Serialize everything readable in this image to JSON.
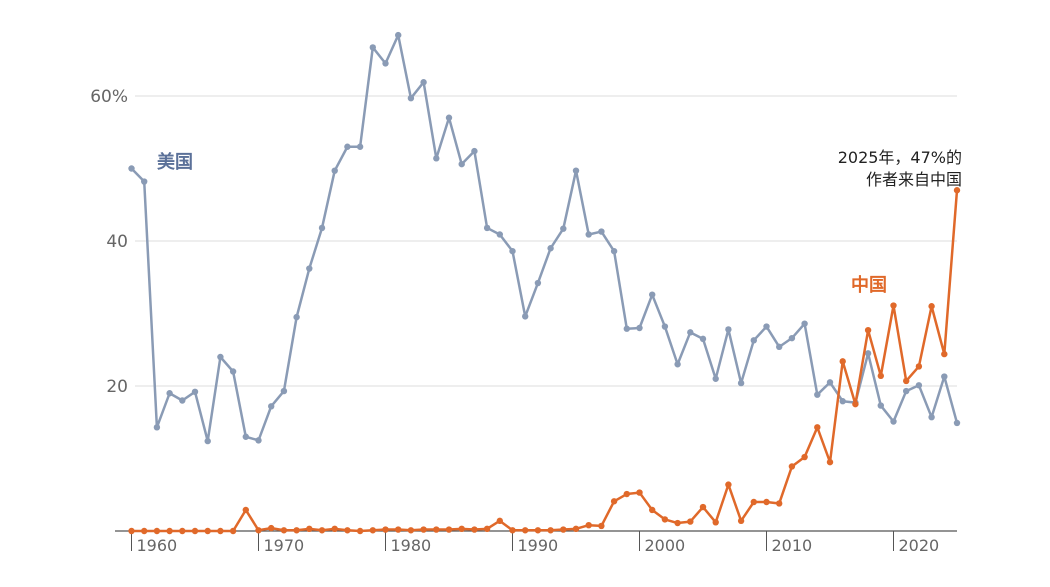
{
  "chart_data": {
    "type": "line",
    "x": [
      1960,
      1961,
      1962,
      1963,
      1964,
      1965,
      1966,
      1967,
      1968,
      1969,
      1970,
      1971,
      1972,
      1973,
      1974,
      1975,
      1976,
      1977,
      1978,
      1979,
      1980,
      1981,
      1982,
      1983,
      1984,
      1985,
      1986,
      1987,
      1988,
      1989,
      1990,
      1991,
      1992,
      1993,
      1994,
      1995,
      1996,
      1997,
      1998,
      1999,
      2000,
      2001,
      2002,
      2003,
      2004,
      2005,
      2006,
      2007,
      2008,
      2009,
      2010,
      2011,
      2012,
      2013,
      2014,
      2015,
      2016,
      2017,
      2018,
      2019,
      2020,
      2021,
      2022,
      2023,
      2024,
      2025
    ],
    "series": [
      {
        "name": "美国",
        "color": "#8a9bb5",
        "label_color": "#5b7199",
        "values": [
          50,
          48.2,
          14.3,
          19,
          18,
          19.2,
          12.4,
          24,
          22,
          13,
          12.5,
          17.2,
          19.3,
          29.5,
          36.2,
          41.8,
          49.7,
          53,
          53,
          66.7,
          64.5,
          68.4,
          59.7,
          61.9,
          51.4,
          57,
          50.6,
          52.4,
          41.8,
          40.9,
          38.6,
          29.6,
          34.2,
          39,
          41.7,
          49.7,
          40.9,
          41.3,
          38.6,
          27.9,
          28,
          32.6,
          28.2,
          23,
          27.4,
          26.5,
          21,
          27.8,
          20.4,
          26.3,
          28.2,
          25.4,
          26.6,
          28.6,
          18.8,
          20.5,
          17.9,
          17.7,
          24.5,
          17.3,
          15.1,
          19.3,
          20.1,
          15.7,
          21.3,
          14.9
        ]
      },
      {
        "name": "中国",
        "color": "#e0692a",
        "label_color": "#e0692a",
        "values": [
          0,
          0,
          0,
          0,
          0,
          0,
          0,
          0,
          0,
          2.9,
          0.1,
          0.4,
          0.1,
          0.1,
          0.3,
          0.1,
          0.3,
          0.1,
          0,
          0.1,
          0.2,
          0.2,
          0.1,
          0.2,
          0.2,
          0.2,
          0.3,
          0.2,
          0.3,
          1.4,
          0.1,
          0.1,
          0.1,
          0.1,
          0.2,
          0.3,
          0.8,
          0.7,
          4.1,
          5.1,
          5.3,
          2.9,
          1.6,
          1.1,
          1.3,
          3.3,
          1.2,
          6.4,
          1.4,
          4,
          4,
          3.8,
          8.9,
          10.2,
          14.3,
          9.5,
          23.4,
          17.5,
          27.7,
          21.4,
          31.1,
          20.7,
          22.7,
          31,
          24.4,
          47
        ]
      }
    ],
    "annotation": [
      "2025年，47%的",
      "作者来自中国"
    ],
    "xlim": [
      1958.7,
      2025
    ],
    "xticks": [
      1960,
      1970,
      1980,
      1990,
      2000,
      2010,
      2020
    ],
    "ylim": [
      0,
      70
    ],
    "yticks": [
      20,
      40,
      {
        "value": 60,
        "label": "60%"
      }
    ],
    "grid": true
  }
}
